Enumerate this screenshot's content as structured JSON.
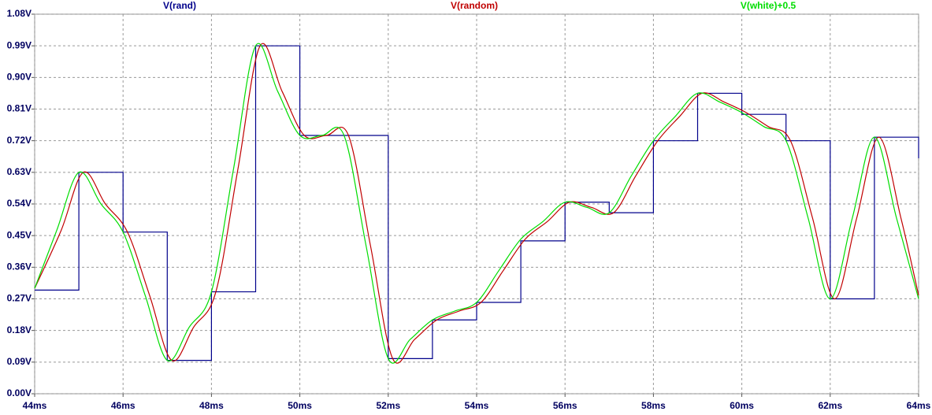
{
  "chart_data": {
    "type": "line",
    "grid": true,
    "xlim": [
      44,
      64
    ],
    "ylim": [
      0,
      1.08
    ],
    "xticks": [
      {
        "value": 44,
        "label": "44ms"
      },
      {
        "value": 46,
        "label": "46ms"
      },
      {
        "value": 48,
        "label": "48ms"
      },
      {
        "value": 50,
        "label": "50ms"
      },
      {
        "value": 52,
        "label": "52ms"
      },
      {
        "value": 54,
        "label": "54ms"
      },
      {
        "value": 56,
        "label": "56ms"
      },
      {
        "value": 58,
        "label": "58ms"
      },
      {
        "value": 60,
        "label": "60ms"
      },
      {
        "value": 62,
        "label": "62ms"
      },
      {
        "value": 64,
        "label": "64ms"
      }
    ],
    "yticks": [
      {
        "value": 0,
        "label": "0.00V"
      },
      {
        "value": 0.09,
        "label": "0.09V"
      },
      {
        "value": 0.18,
        "label": "0.18V"
      },
      {
        "value": 0.27,
        "label": "0.27V"
      },
      {
        "value": 0.36,
        "label": "0.36V"
      },
      {
        "value": 0.45,
        "label": "0.45V"
      },
      {
        "value": 0.54,
        "label": "0.54V"
      },
      {
        "value": 0.63,
        "label": "0.63V"
      },
      {
        "value": 0.72,
        "label": "0.72V"
      },
      {
        "value": 0.81,
        "label": "0.81V"
      },
      {
        "value": 0.9,
        "label": "0.90V"
      },
      {
        "value": 0.99,
        "label": "0.99V"
      },
      {
        "value": 1.08,
        "label": "1.08V"
      }
    ],
    "series": [
      {
        "name": "V(rand)",
        "color": "#00008b",
        "smooth": false,
        "x": [
          44,
          45,
          45,
          46,
          46,
          47,
          47,
          48,
          48,
          49,
          49,
          50,
          50,
          51,
          51,
          52,
          52,
          53,
          53,
          54,
          54,
          55,
          55,
          56,
          56,
          57,
          57,
          58,
          58,
          59,
          59,
          60,
          60,
          61,
          61,
          62,
          62,
          63,
          63,
          64,
          64
        ],
        "values": [
          0.295,
          0.295,
          0.63,
          0.63,
          0.46,
          0.46,
          0.095,
          0.095,
          0.29,
          0.29,
          0.99,
          0.99,
          0.735,
          0.735,
          0.735,
          0.735,
          0.1,
          0.1,
          0.21,
          0.21,
          0.26,
          0.26,
          0.435,
          0.435,
          0.545,
          0.545,
          0.515,
          0.515,
          0.72,
          0.72,
          0.855,
          0.855,
          0.795,
          0.795,
          0.72,
          0.72,
          0.27,
          0.27,
          0.73,
          0.73,
          0.67
        ]
      },
      {
        "name": "V(random)",
        "color": "#c00000",
        "smooth": true,
        "x": [
          44,
          44.6,
          45.1,
          45.6,
          46.1,
          46.6,
          47.1,
          47.6,
          48.1,
          48.6,
          49.1,
          49.6,
          50.1,
          50.6,
          51.1,
          51.6,
          52.1,
          52.6,
          53.1,
          53.6,
          54.1,
          54.6,
          55.1,
          55.6,
          56.1,
          56.6,
          57.1,
          57.6,
          58.1,
          58.6,
          59.1,
          59.6,
          60.1,
          60.6,
          61.1,
          61.6,
          62.1,
          62.6,
          63.1,
          63.6,
          64
        ],
        "values": [
          0.3,
          0.465,
          0.63,
          0.54,
          0.46,
          0.28,
          0.095,
          0.19,
          0.29,
          0.64,
          0.99,
          0.86,
          0.735,
          0.735,
          0.735,
          0.42,
          0.1,
          0.155,
          0.21,
          0.235,
          0.26,
          0.35,
          0.44,
          0.49,
          0.545,
          0.53,
          0.515,
          0.62,
          0.72,
          0.79,
          0.855,
          0.83,
          0.8,
          0.76,
          0.72,
          0.5,
          0.27,
          0.5,
          0.73,
          0.5,
          0.28
        ]
      },
      {
        "name": "V(white)+0.5",
        "color": "#00dd00",
        "smooth": true,
        "x": [
          44,
          44.5,
          45,
          45.5,
          46,
          46.5,
          47,
          47.5,
          48,
          48.5,
          49,
          49.5,
          50,
          50.5,
          51,
          51.5,
          52,
          52.5,
          53,
          53.5,
          54,
          54.5,
          55,
          55.5,
          56,
          56.5,
          57,
          57.5,
          58,
          58.5,
          59,
          59.5,
          60,
          60.5,
          61,
          61.5,
          62,
          62.5,
          63,
          63.5,
          64
        ],
        "values": [
          0.3,
          0.465,
          0.63,
          0.54,
          0.46,
          0.28,
          0.095,
          0.19,
          0.29,
          0.64,
          0.99,
          0.86,
          0.735,
          0.735,
          0.735,
          0.42,
          0.1,
          0.155,
          0.21,
          0.235,
          0.26,
          0.35,
          0.44,
          0.49,
          0.545,
          0.53,
          0.515,
          0.62,
          0.72,
          0.79,
          0.855,
          0.83,
          0.8,
          0.76,
          0.72,
          0.5,
          0.27,
          0.5,
          0.73,
          0.5,
          0.27
        ]
      }
    ]
  }
}
